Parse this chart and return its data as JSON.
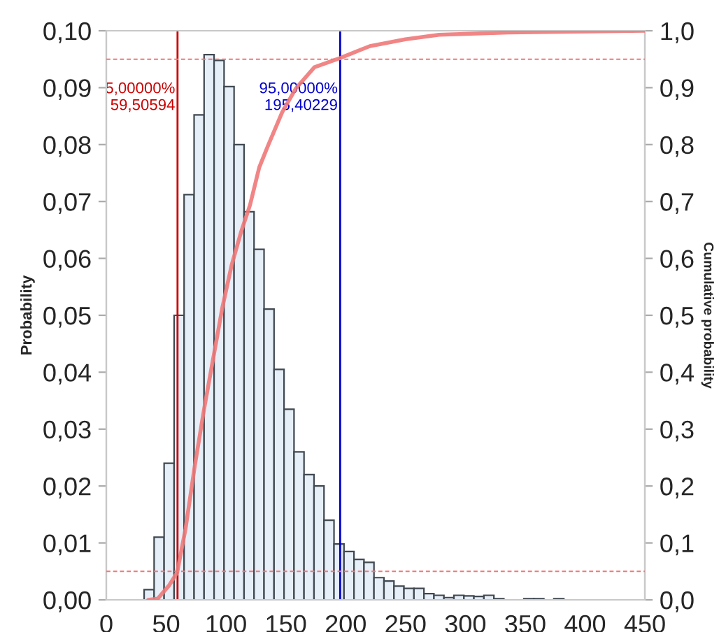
{
  "chart_data": {
    "type": "histogram",
    "ylabel": "Probability",
    "y2label": "Cumulative probability",
    "bins": [
      31.6,
      39.95,
      48.3,
      56.65,
      65.0,
      73.35,
      81.7,
      90.05,
      98.4,
      106.75,
      115.1,
      123.45,
      131.8,
      140.15,
      148.5,
      156.85,
      165.2,
      173.55,
      181.9,
      190.25,
      198.6,
      206.95,
      215.3,
      223.65,
      232.0,
      240.35,
      248.7,
      257.05,
      265.4,
      273.75,
      282.1,
      290.45,
      298.8,
      307.15,
      315.5,
      323.85,
      332.2,
      340.55,
      348.9,
      357.25,
      365.6,
      373.95,
      382.3
    ],
    "values": [
      0.0018,
      0.011,
      0.024,
      0.05,
      0.0712,
      0.0852,
      0.0958,
      0.0948,
      0.0902,
      0.08,
      0.0682,
      0.0616,
      0.0511,
      0.0405,
      0.0335,
      0.026,
      0.022,
      0.02,
      0.014,
      0.0098,
      0.0085,
      0.0071,
      0.0066,
      0.0039,
      0.0033,
      0.0024,
      0.002,
      0.002,
      0.0011,
      0.0008,
      0.0004,
      0.0008,
      0.0007,
      0.0006,
      0.0008,
      0.0002,
      null,
      null,
      0.0002,
      0.0002,
      null,
      0.0002
    ],
    "color": "#e6eef8",
    "series": [
      {
        "type": "line",
        "axis": "y2",
        "color": "#f07878",
        "x": [
          35,
          43,
          52.7,
          59.2,
          66.2,
          73.9,
          81.6,
          89.3,
          97,
          104.7,
          112.4,
          120.1,
          127.8,
          135.5,
          147,
          158.5,
          173.9,
          195.2,
          220.2,
          249.8,
          278,
          335.9,
          450
        ],
        "values": [
          0,
          0.002,
          0.026,
          0.048,
          0.125,
          0.235,
          0.334,
          0.424,
          0.514,
          0.588,
          0.645,
          0.694,
          0.76,
          0.8,
          0.857,
          0.899,
          0.936,
          0.952,
          0.973,
          0.985,
          0.993,
          0.997,
          1.0
        ]
      }
    ],
    "ref_lines": [
      {
        "axis": "x",
        "value": 59.50594,
        "label": "5,00000%\n59,50594",
        "color": "#cc0000"
      },
      {
        "axis": "x",
        "value": 195.40229,
        "label": "95,00000%\n195,40229",
        "color": "#0000cc"
      },
      {
        "axis": "y2",
        "value": 0.05,
        "color": "#f07878",
        "line_style": "dashed"
      },
      {
        "axis": "y2",
        "value": 0.95,
        "color": "#f07878",
        "line_style": "dashed"
      }
    ],
    "xlim": [
      0,
      450
    ],
    "xticks": [
      0,
      50,
      100,
      150,
      200,
      250,
      300,
      350,
      400,
      450
    ],
    "ylim": [
      0,
      0.1
    ],
    "yticks": [
      {
        "value": 0,
        "label": "0,00"
      },
      {
        "value": 0.01,
        "label": "0,01"
      },
      {
        "value": 0.02,
        "label": "0,02"
      },
      {
        "value": 0.03,
        "label": "0,03"
      },
      {
        "value": 0.04,
        "label": "0,04"
      },
      {
        "value": 0.05,
        "label": "0,05"
      },
      {
        "value": 0.06,
        "label": "0,06"
      },
      {
        "value": 0.07,
        "label": "0,07"
      },
      {
        "value": 0.08,
        "label": "0,08"
      },
      {
        "value": 0.09,
        "label": "0,09"
      },
      {
        "value": 0.1,
        "label": "0,10"
      }
    ],
    "y2lim": [
      0,
      1
    ],
    "y2ticks": [
      {
        "value": 0,
        "label": "0,0"
      },
      {
        "value": 0.1,
        "label": "0,1"
      },
      {
        "value": 0.2,
        "label": "0,2"
      },
      {
        "value": 0.3,
        "label": "0,3"
      },
      {
        "value": 0.4,
        "label": "0,4"
      },
      {
        "value": 0.5,
        "label": "0,5"
      },
      {
        "value": 0.6,
        "label": "0,6"
      },
      {
        "value": 0.7,
        "label": "0,7"
      },
      {
        "value": 0.8,
        "label": "0,8"
      },
      {
        "value": 0.9,
        "label": "0,9"
      },
      {
        "value": 1.0,
        "label": "1,0"
      }
    ],
    "grid": false,
    "legend": false
  }
}
